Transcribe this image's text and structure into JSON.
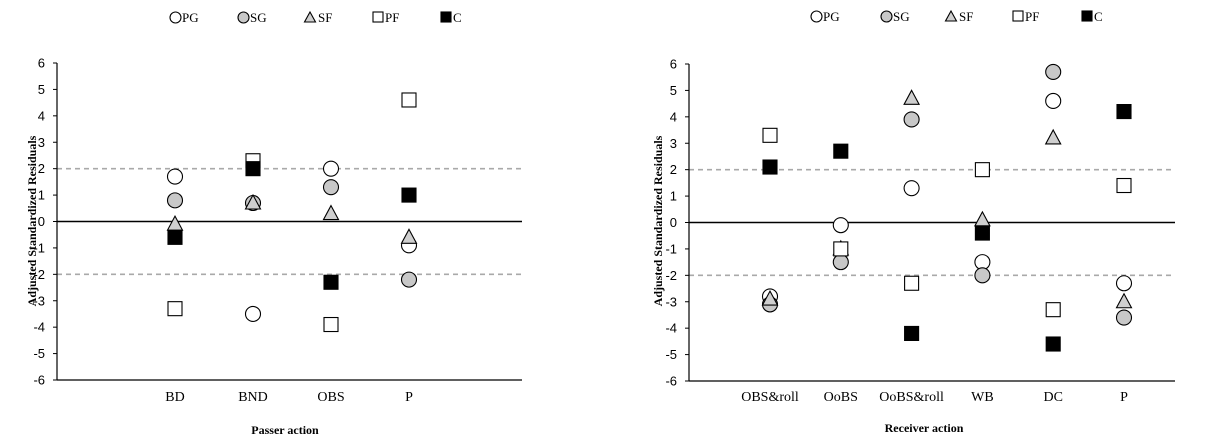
{
  "chart_data": [
    {
      "type": "scatter",
      "ylabel": "Adjusted Standardized Residuals",
      "xlabel": "Passer action",
      "categories": [
        "BD",
        "BND",
        "OBS",
        "P"
      ],
      "ylim": [
        -6,
        6
      ],
      "yticks": [
        "6",
        "5",
        "4",
        "3",
        "2",
        "1",
        "0",
        "-1",
        "-2",
        "-3",
        "-4",
        "-5",
        "-6"
      ],
      "reference_lines": [
        2,
        -2
      ],
      "legend_position": "top",
      "series": [
        {
          "name": "PG",
          "marker": "circle-open",
          "color": "#ffffff",
          "values": [
            1.7,
            -3.5,
            2.0,
            -0.9
          ]
        },
        {
          "name": "SG",
          "marker": "circle-gray",
          "color": "#c8c8c8",
          "values": [
            0.8,
            0.7,
            1.3,
            -2.2
          ]
        },
        {
          "name": "SF",
          "marker": "triangle",
          "color": "#cfcfcf",
          "values": [
            -0.1,
            0.7,
            0.3,
            -0.6
          ]
        },
        {
          "name": "PF",
          "marker": "square-open",
          "color": "#ffffff",
          "values": [
            -3.3,
            2.3,
            -3.9,
            4.6
          ]
        },
        {
          "name": "C",
          "marker": "square-black",
          "color": "#000000",
          "values": [
            -0.6,
            2.0,
            -2.3,
            1.0
          ]
        }
      ]
    },
    {
      "type": "scatter",
      "ylabel": "Adjusted Standardized Residuals",
      "xlabel": "Receiver action",
      "categories": [
        "OBS&roll",
        "OoBS",
        "OoBS&roll",
        "WB",
        "DC",
        "P"
      ],
      "ylim": [
        -6,
        6
      ],
      "yticks": [
        "6",
        "5",
        "4",
        "3",
        "2",
        "1",
        "0",
        "-1",
        "-2",
        "-3",
        "-4",
        "-5",
        "-6"
      ],
      "reference_lines": [
        2,
        -2
      ],
      "legend_position": "top",
      "series": [
        {
          "name": "PG",
          "marker": "circle-open",
          "color": "#ffffff",
          "values": [
            -2.8,
            -0.1,
            1.3,
            -1.5,
            4.6,
            -2.3
          ]
        },
        {
          "name": "SG",
          "marker": "circle-gray",
          "color": "#c8c8c8",
          "values": [
            -3.1,
            -1.5,
            3.9,
            -2.0,
            5.7,
            -3.6
          ]
        },
        {
          "name": "SF",
          "marker": "triangle",
          "color": "#cfcfcf",
          "values": [
            -2.9,
            -1.0,
            4.7,
            0.1,
            3.2,
            -3.0
          ]
        },
        {
          "name": "PF",
          "marker": "square-open",
          "color": "#ffffff",
          "values": [
            3.3,
            -1.0,
            -2.3,
            2.0,
            -3.3,
            1.4
          ]
        },
        {
          "name": "C",
          "marker": "square-black",
          "color": "#000000",
          "values": [
            2.1,
            2.7,
            -4.2,
            -0.4,
            -4.6,
            4.2
          ]
        }
      ]
    }
  ]
}
